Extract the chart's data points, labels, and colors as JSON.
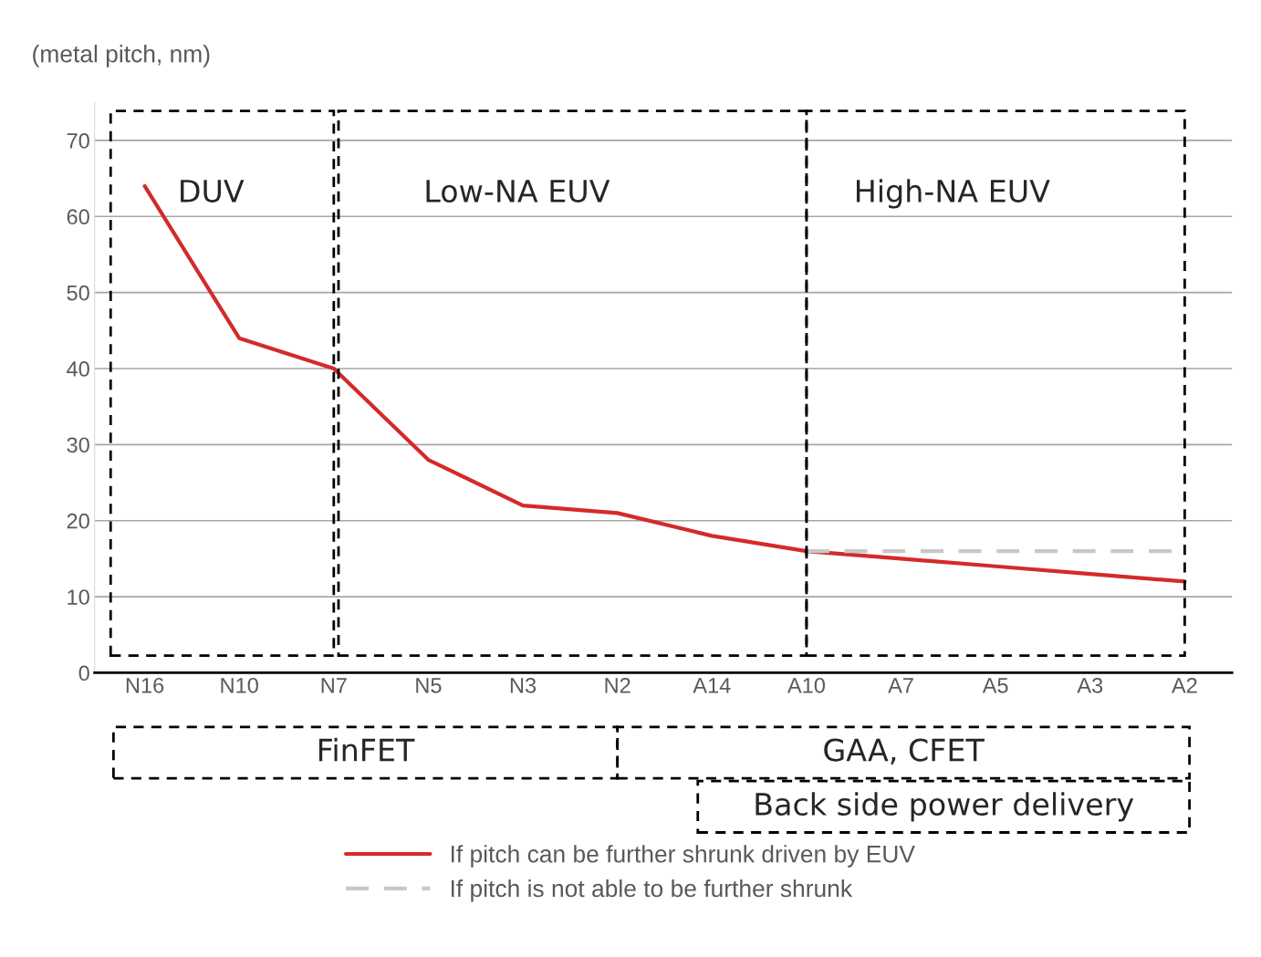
{
  "chart_data": {
    "type": "line",
    "ylabel": "(metal pitch, nm)",
    "categories": [
      "N16",
      "N10",
      "N7",
      "N5",
      "N3",
      "N2",
      "A14",
      "A10",
      "A7",
      "A5",
      "A3",
      "A2"
    ],
    "series": [
      {
        "name": "If pitch can be further shrunk driven by EUV",
        "color": "#d42a2a",
        "line_style": "solid",
        "values": [
          64,
          44,
          40,
          28,
          22,
          21,
          18,
          16,
          15,
          14,
          13,
          12
        ]
      },
      {
        "name": "If pitch is not able to be further shrunk",
        "color": "#c8c8c8",
        "line_style": "dashed",
        "values": [
          null,
          null,
          null,
          null,
          null,
          null,
          null,
          16,
          16,
          16,
          16,
          16
        ]
      }
    ],
    "ylim": [
      0,
      75
    ],
    "yticks": [
      0,
      10,
      20,
      30,
      40,
      50,
      60,
      70
    ],
    "grid": "y",
    "legend": "bottom",
    "annotations": [
      "DUV",
      "Low-NA EUV",
      "High-NA EUV",
      "FinFET",
      "GAA, CFET",
      "Back side power delivery"
    ]
  }
}
